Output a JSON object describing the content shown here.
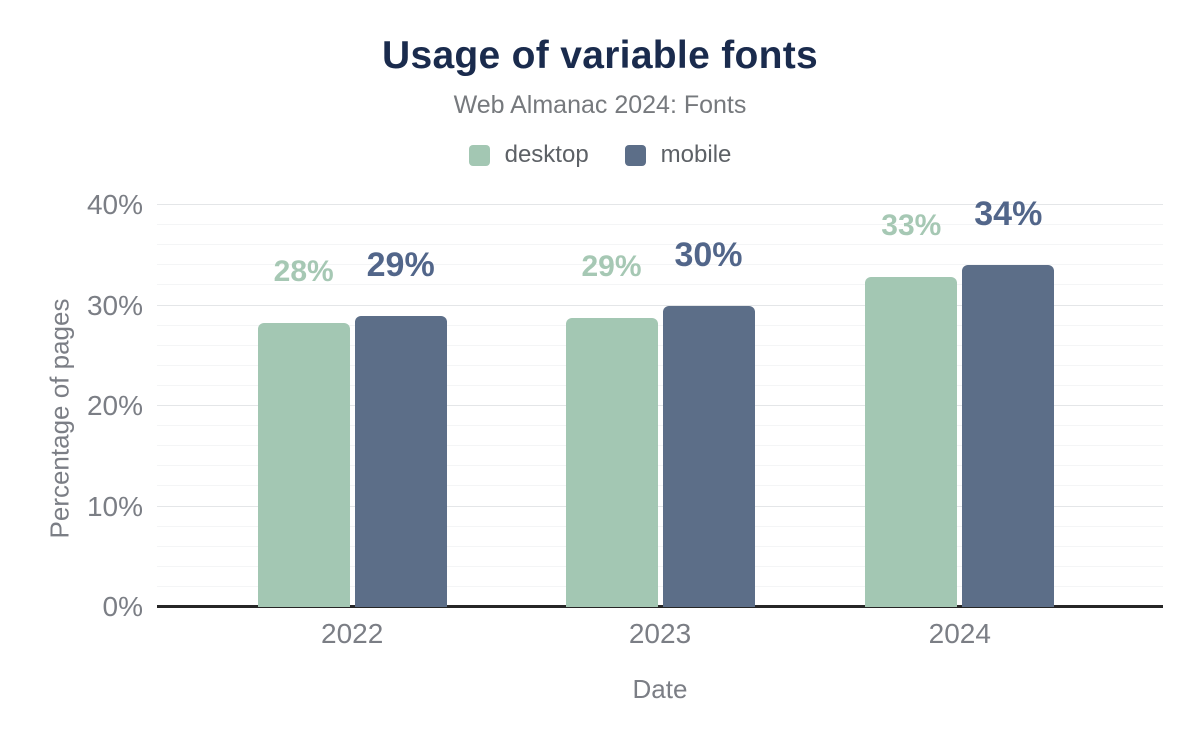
{
  "chart_data": {
    "type": "bar",
    "title": "Usage of variable fonts",
    "subtitle": "Web Almanac 2024: Fonts",
    "xlabel": "Date",
    "ylabel": "Percentage of pages",
    "categories": [
      "2022",
      "2023",
      "2024"
    ],
    "series": [
      {
        "name": "desktop",
        "values": [
          28,
          29,
          33
        ],
        "labels": [
          "28%",
          "29%",
          "33%"
        ],
        "bar_heights_pct": [
          28.3,
          28.8,
          32.8
        ],
        "color": "#a3c7b3",
        "label_color": "#a6c8b4"
      },
      {
        "name": "mobile",
        "values": [
          29,
          30,
          34
        ],
        "labels": [
          "29%",
          "30%",
          "34%"
        ],
        "bar_heights_pct": [
          29.0,
          30.0,
          34.0
        ],
        "color": "#5c6e88",
        "label_color": "#52668a"
      }
    ],
    "ylim": [
      0,
      40
    ],
    "yticks": [
      {
        "value": 0,
        "label": "0%"
      },
      {
        "value": 10,
        "label": "10%"
      },
      {
        "value": 20,
        "label": "20%"
      },
      {
        "value": 30,
        "label": "30%"
      },
      {
        "value": 40,
        "label": "40%"
      }
    ],
    "minor_grid_step_pct": 2,
    "grid": true,
    "legend_position": "top"
  },
  "style": {
    "background": "#ffffff",
    "title_color": "#1a2b4d",
    "subtitle_color": "#76797d",
    "axis_text_color": "#7b7e85",
    "axis_line_color": "#262626",
    "major_grid_color": "#e4e6e8",
    "minor_grid_color": "#f4f5f6"
  }
}
